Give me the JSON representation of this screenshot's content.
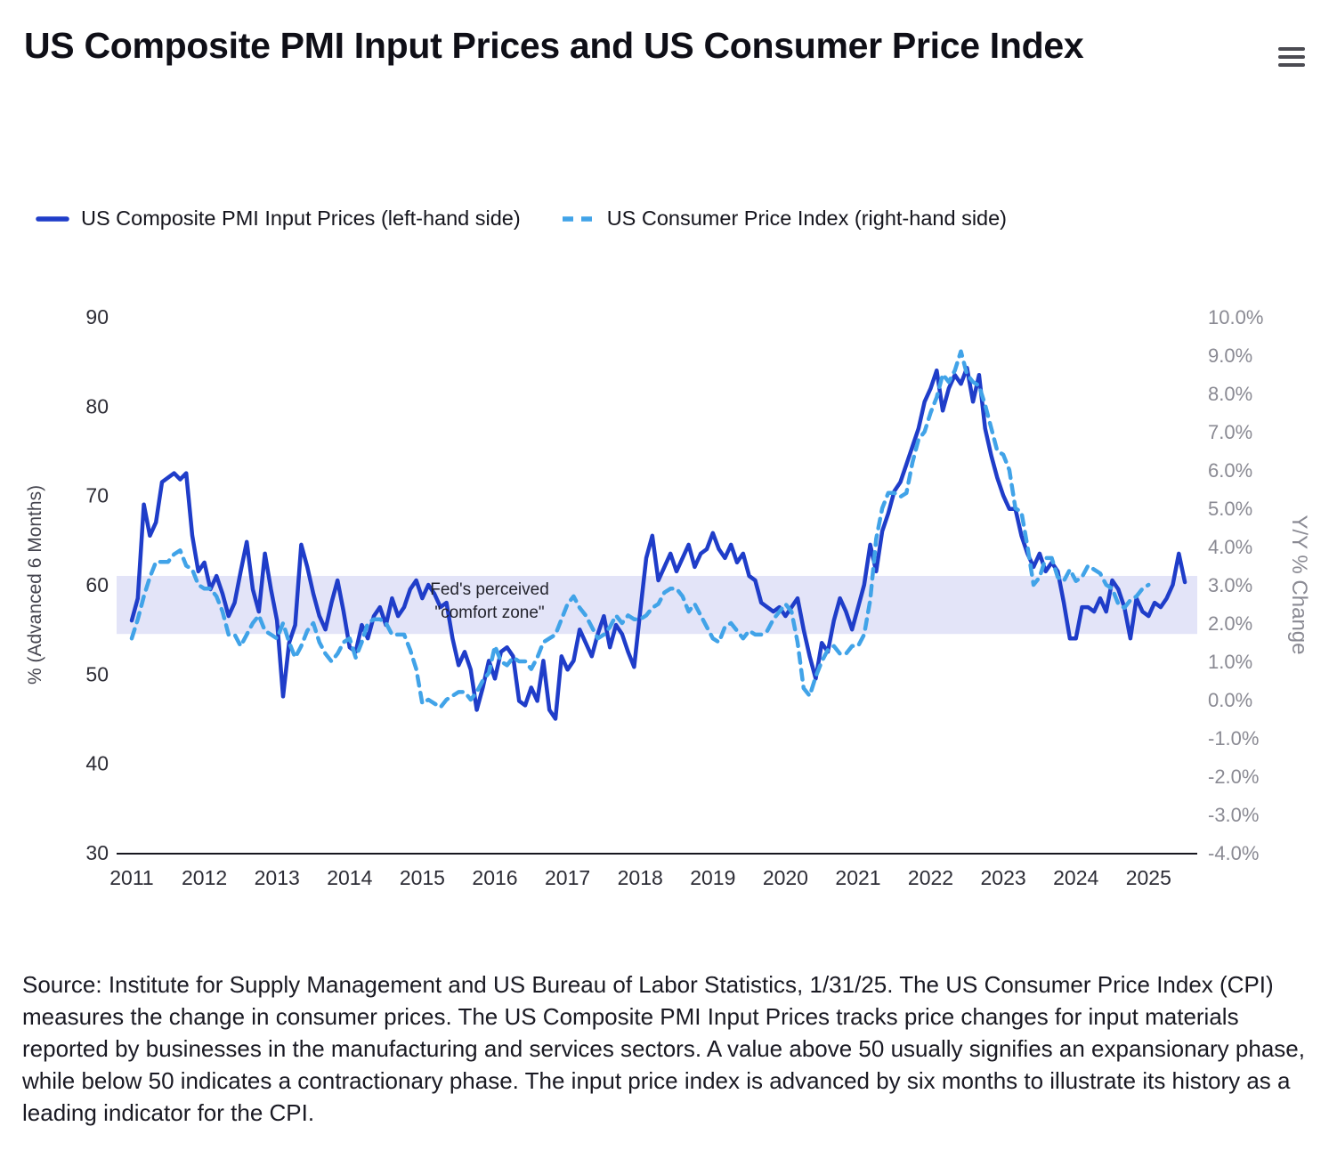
{
  "title": "US Composite PMI Input Prices and US Consumer Price Index",
  "icons": {
    "menu": "hamburger-menu-icon"
  },
  "legend": [
    {
      "label": "US Composite PMI Input Prices (left-hand side)",
      "color": "#1f3dc9",
      "style": "solid"
    },
    {
      "label": "US Consumer Price Index (right-hand side)",
      "color": "#41a3e8",
      "style": "dashed"
    }
  ],
  "source_text": "Source: Institute for Supply Management and US Bureau of Labor Statistics, 1/31/25. The US Consumer Price Index (CPI) measures the change in consumer prices. The US Composite PMI Input Prices tracks price changes for input materials reported by businesses in the manufacturing and services sectors. A value above 50 usually signifies an expansionary phase, while below 50 indicates a contractionary phase. The input price index is advanced by six months to illustrate its history as a leading indicator for the CPI.",
  "chart_data": {
    "type": "line",
    "title": "US Composite PMI Input Prices and US Consumer Price Index",
    "x_start": 2011.0,
    "x_step_months": 1,
    "x_min": 2011,
    "x_max": 2025.67,
    "x_ticks": [
      2011,
      2012,
      2013,
      2014,
      2015,
      2016,
      2017,
      2018,
      2019,
      2020,
      2021,
      2022,
      2023,
      2024,
      2025
    ],
    "grid": false,
    "legend_position": "top",
    "left_axis": {
      "label": "% (Advanced 6 Months)",
      "min": 30,
      "max": 90,
      "ticks": [
        90,
        80,
        70,
        60,
        50,
        40,
        30
      ]
    },
    "right_axis": {
      "label": "Y/Y % Change",
      "min": -4,
      "max": 10,
      "tick_labels": [
        "10.0%",
        "9.0%",
        "8.0%",
        "7.0%",
        "6.0%",
        "5.0%",
        "4.0%",
        "3.0%",
        "2.0%",
        "1.0%",
        "0.0%",
        "-1.0%",
        "-2.0%",
        "-3.0%",
        "-4.0%"
      ]
    },
    "band": {
      "axis": "left",
      "from": 54.5,
      "to": 61.0,
      "color": "#e3e4f8",
      "label_lines": [
        "Fed's perceived",
        "\"comfort zone\""
      ]
    },
    "series": [
      {
        "name": "US Composite PMI Input Prices (left-hand side)",
        "axis": "left",
        "color": "#1f3dc9",
        "dash": null,
        "values": [
          56.0,
          58.5,
          69.0,
          65.5,
          67.0,
          71.5,
          72.0,
          72.5,
          71.8,
          72.5,
          65.5,
          61.5,
          62.5,
          59.5,
          61.0,
          59.0,
          56.5,
          58.0,
          61.5,
          64.8,
          59.5,
          57.0,
          63.5,
          59.5,
          56.0,
          47.5,
          53.5,
          55.5,
          64.5,
          62.0,
          59.0,
          56.5,
          55.0,
          58.0,
          60.5,
          57.0,
          53.0,
          52.5,
          55.5,
          54.0,
          56.5,
          57.5,
          55.5,
          58.5,
          56.5,
          57.5,
          59.5,
          60.5,
          58.5,
          60.0,
          59.0,
          57.5,
          58.0,
          54.0,
          51.0,
          52.5,
          50.5,
          46.0,
          48.5,
          51.5,
          49.5,
          52.5,
          53.0,
          52.0,
          47.0,
          46.5,
          48.5,
          47.0,
          51.5,
          46.0,
          45.0,
          52.0,
          50.5,
          51.5,
          55.0,
          53.5,
          52.0,
          54.5,
          56.5,
          53.0,
          55.5,
          54.5,
          52.5,
          50.8,
          57.0,
          63.0,
          65.5,
          60.5,
          62.0,
          63.5,
          61.5,
          63.0,
          64.5,
          62.0,
          63.5,
          64.0,
          65.8,
          64.0,
          63.0,
          64.5,
          62.5,
          63.5,
          61.0,
          60.5,
          58.0,
          57.5,
          57.0,
          57.5,
          56.5,
          57.5,
          58.5,
          55.0,
          52.0,
          49.5,
          53.5,
          52.5,
          56.0,
          58.5,
          57.0,
          55.0,
          57.5,
          60.0,
          64.5,
          61.5,
          66.0,
          68.0,
          70.5,
          71.5,
          73.5,
          75.5,
          77.5,
          80.5,
          82.0,
          84.0,
          79.5,
          82.0,
          83.5,
          82.5,
          84.3,
          80.5,
          83.5,
          77.5,
          74.5,
          72.0,
          70.0,
          68.5,
          68.5,
          65.5,
          63.5,
          62.0,
          63.5,
          61.5,
          62.5,
          61.5,
          58.0,
          54.0,
          54.0,
          57.5,
          57.5,
          57.0,
          58.5,
          57.0,
          60.5,
          59.5,
          57.5,
          54.0,
          58.5,
          57.0,
          56.5,
          58.0,
          57.5,
          58.5,
          60.0,
          63.5,
          60.3
        ]
      },
      {
        "name": "US Consumer Price Index (right-hand side)",
        "axis": "right",
        "color": "#41a3e8",
        "dash": "11 8",
        "values": [
          1.6,
          2.1,
          2.7,
          3.2,
          3.6,
          3.6,
          3.6,
          3.8,
          3.9,
          3.5,
          3.4,
          3.0,
          2.9,
          2.9,
          2.7,
          2.3,
          1.7,
          1.7,
          1.4,
          1.7,
          2.0,
          2.2,
          1.8,
          1.7,
          1.6,
          2.0,
          1.5,
          1.1,
          1.4,
          1.8,
          2.0,
          1.5,
          1.2,
          1.0,
          1.2,
          1.5,
          1.6,
          1.1,
          1.5,
          2.0,
          2.1,
          2.1,
          2.0,
          1.7,
          1.7,
          1.7,
          1.3,
          0.8,
          -0.1,
          0.0,
          -0.1,
          -0.2,
          0.0,
          0.1,
          0.2,
          0.2,
          0.0,
          0.2,
          0.5,
          0.7,
          1.4,
          1.0,
          0.9,
          1.1,
          1.0,
          1.0,
          0.8,
          1.1,
          1.5,
          1.6,
          1.7,
          2.1,
          2.5,
          2.7,
          2.4,
          2.2,
          1.9,
          1.6,
          1.7,
          1.9,
          2.2,
          2.0,
          2.2,
          2.1,
          2.1,
          2.2,
          2.4,
          2.5,
          2.8,
          2.9,
          2.9,
          2.7,
          2.3,
          2.5,
          2.2,
          1.9,
          1.6,
          1.5,
          1.9,
          2.0,
          1.8,
          1.6,
          1.8,
          1.7,
          1.7,
          1.8,
          2.1,
          2.3,
          2.5,
          2.3,
          1.5,
          0.3,
          0.1,
          0.6,
          1.0,
          1.3,
          1.4,
          1.2,
          1.2,
          1.4,
          1.4,
          1.7,
          2.6,
          4.2,
          5.0,
          5.4,
          5.4,
          5.3,
          5.4,
          6.2,
          6.8,
          7.0,
          7.5,
          7.9,
          8.5,
          8.3,
          8.6,
          9.1,
          8.5,
          8.3,
          8.2,
          7.7,
          7.1,
          6.5,
          6.4,
          6.0,
          5.0,
          4.9,
          4.0,
          3.0,
          3.2,
          3.7,
          3.7,
          3.2,
          3.1,
          3.4,
          3.1,
          3.2,
          3.5,
          3.4,
          3.3,
          3.0,
          2.9,
          2.5,
          2.4,
          2.6,
          2.7,
          2.9,
          3.0
        ]
      }
    ]
  }
}
